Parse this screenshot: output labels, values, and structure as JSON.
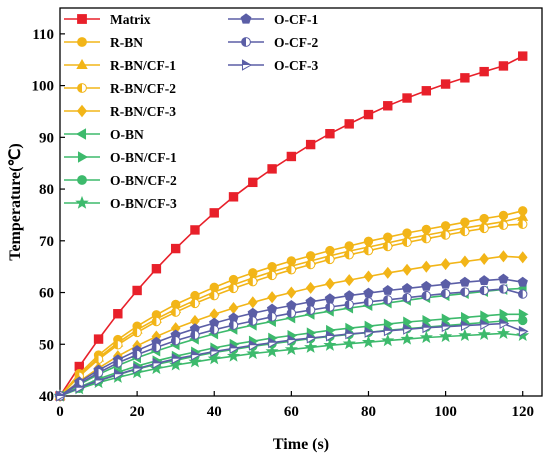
{
  "chart_data": {
    "type": "line",
    "xlabel": "Time (s)",
    "ylabel": "Temperature(℃)",
    "xlim": [
      0,
      125
    ],
    "ylim": [
      40,
      115
    ],
    "xticks": [
      0,
      20,
      40,
      60,
      80,
      100,
      120
    ],
    "yticks": [
      40,
      50,
      60,
      70,
      80,
      90,
      100,
      110
    ],
    "grid": false,
    "legend_position": "top-left, two columns",
    "x": [
      0,
      5,
      10,
      15,
      20,
      25,
      30,
      35,
      40,
      45,
      50,
      55,
      60,
      65,
      70,
      75,
      80,
      85,
      90,
      95,
      100,
      105,
      110,
      115,
      120
    ],
    "series": [
      {
        "name": "Matrix",
        "color": "#e8202a",
        "marker": "square",
        "values": [
          40.0,
          45.7,
          51.0,
          55.9,
          60.4,
          64.6,
          68.5,
          72.1,
          75.4,
          78.5,
          81.3,
          83.9,
          86.3,
          88.6,
          90.7,
          92.6,
          94.4,
          96.1,
          97.6,
          99.0,
          100.3,
          101.5,
          102.7,
          103.8,
          105.7
        ]
      },
      {
        "name": "R-BN",
        "color": "#f2b518",
        "marker": "circle",
        "values": [
          40.0,
          44.3,
          47.9,
          50.9,
          53.5,
          55.7,
          57.7,
          59.4,
          61.0,
          62.5,
          63.8,
          65.0,
          66.1,
          67.1,
          68.1,
          69.0,
          69.9,
          70.7,
          71.5,
          72.2,
          72.9,
          73.6,
          74.3,
          74.9,
          75.8
        ]
      },
      {
        "name": "R-BN/CF-1",
        "color": "#f2b518",
        "marker": "triangle-up",
        "values": [
          40.0,
          44.0,
          47.4,
          50.3,
          52.8,
          54.9,
          56.8,
          58.5,
          60.1,
          61.5,
          62.8,
          64.0,
          65.1,
          66.1,
          67.1,
          68.0,
          68.8,
          69.6,
          70.4,
          71.1,
          71.8,
          72.5,
          73.1,
          73.7,
          74.6
        ]
      },
      {
        "name": "R-BN/CF-2",
        "color": "#f2b518",
        "marker": "circle-half",
        "values": [
          40.0,
          43.8,
          47.1,
          49.9,
          52.3,
          54.4,
          56.2,
          57.9,
          59.4,
          60.8,
          62.1,
          63.3,
          64.4,
          65.4,
          66.4,
          67.3,
          68.1,
          68.9,
          69.7,
          70.4,
          71.1,
          71.8,
          72.4,
          73.0,
          73.2
        ]
      },
      {
        "name": "R-BN/CF-3",
        "color": "#f2b518",
        "marker": "diamond",
        "values": [
          40.0,
          42.8,
          45.4,
          47.7,
          49.7,
          51.5,
          53.1,
          54.5,
          55.8,
          57.0,
          58.1,
          59.1,
          60.0,
          60.9,
          61.7,
          62.4,
          63.1,
          63.8,
          64.4,
          65.0,
          65.5,
          66.0,
          66.5,
          67.0,
          66.8
        ]
      },
      {
        "name": "O-BN",
        "color": "#3dba6c",
        "marker": "triangle-left",
        "values": [
          40.0,
          42.2,
          44.2,
          45.9,
          47.4,
          48.7,
          49.9,
          51.0,
          52.0,
          52.9,
          53.7,
          54.4,
          55.1,
          55.8,
          56.4,
          57.0,
          57.5,
          58.0,
          58.5,
          59.0,
          59.4,
          59.8,
          60.2,
          60.6,
          60.8
        ]
      },
      {
        "name": "O-BN/CF-1",
        "color": "#3dba6c",
        "marker": "triangle-right",
        "values": [
          40.0,
          41.7,
          43.3,
          44.6,
          45.8,
          46.8,
          47.7,
          48.5,
          49.3,
          50.0,
          50.6,
          51.2,
          51.7,
          52.2,
          52.7,
          53.1,
          53.5,
          53.9,
          54.3,
          54.6,
          54.9,
          55.2,
          55.5,
          55.8,
          55.8
        ]
      },
      {
        "name": "O-BN/CF-2",
        "color": "#3dba6c",
        "marker": "circle",
        "values": [
          40.0,
          41.5,
          42.9,
          44.1,
          45.2,
          46.1,
          46.9,
          47.7,
          48.4,
          49.0,
          49.6,
          50.1,
          50.6,
          51.1,
          51.5,
          51.9,
          52.3,
          52.7,
          53.0,
          53.3,
          53.6,
          53.9,
          54.2,
          54.5,
          54.6
        ]
      },
      {
        "name": "O-BN/CF-3",
        "color": "#3dba6c",
        "marker": "star",
        "values": [
          40.0,
          41.4,
          42.6,
          43.6,
          44.5,
          45.3,
          46.0,
          46.6,
          47.2,
          47.7,
          48.2,
          48.6,
          49.0,
          49.4,
          49.8,
          50.1,
          50.4,
          50.7,
          51.0,
          51.3,
          51.5,
          51.7,
          51.9,
          52.1,
          51.7
        ]
      },
      {
        "name": "O-CF-1",
        "color": "#5b5ea6",
        "marker": "pentagon",
        "values": [
          40.0,
          42.7,
          45.0,
          47.0,
          48.8,
          50.4,
          51.8,
          53.0,
          54.1,
          55.1,
          56.0,
          56.8,
          57.5,
          58.2,
          58.8,
          59.4,
          59.9,
          60.4,
          60.8,
          61.2,
          61.6,
          62.0,
          62.3,
          62.6,
          62.0
        ]
      },
      {
        "name": "O-CF-2",
        "color": "#5b5ea6",
        "marker": "circle-half",
        "values": [
          40.0,
          42.4,
          44.5,
          46.4,
          48.0,
          49.4,
          50.7,
          51.8,
          52.8,
          53.7,
          54.5,
          55.3,
          56.0,
          56.6,
          57.2,
          57.7,
          58.2,
          58.6,
          59.0,
          59.4,
          59.8,
          60.1,
          60.4,
          60.7,
          59.7
        ]
      },
      {
        "name": "O-CF-3",
        "color": "#5b5ea6",
        "marker": "triangle-right-half",
        "values": [
          40.0,
          41.6,
          43.0,
          44.2,
          45.3,
          46.3,
          47.2,
          47.9,
          48.6,
          49.2,
          49.8,
          50.3,
          50.8,
          51.2,
          51.6,
          52.0,
          52.3,
          52.6,
          52.9,
          53.2,
          53.4,
          53.6,
          53.8,
          54.0,
          52.5
        ]
      }
    ]
  }
}
